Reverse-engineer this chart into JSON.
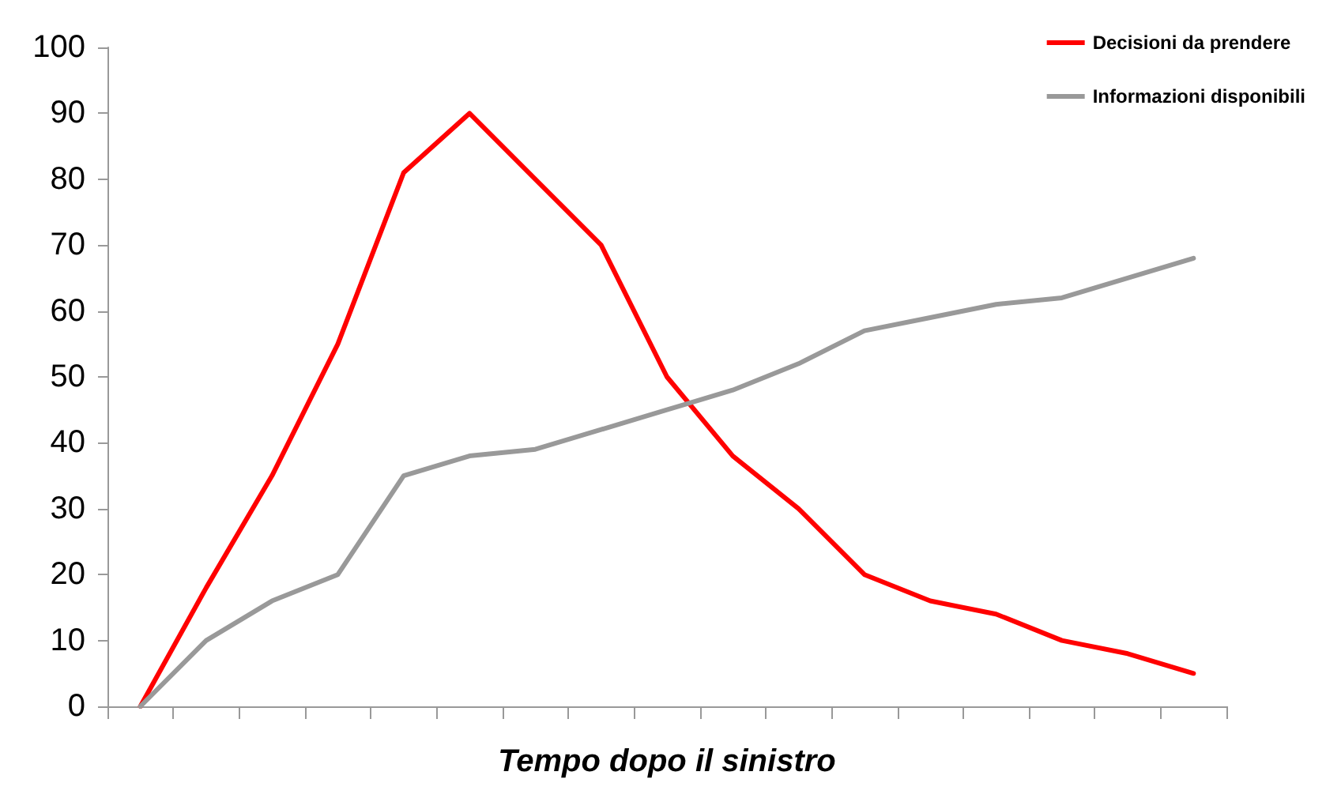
{
  "chart_data": {
    "type": "line",
    "xlabel": "Tempo dopo il sinistro",
    "categories": [
      null,
      null,
      null,
      null,
      null,
      null,
      null,
      null,
      null,
      null,
      null,
      null,
      null,
      null,
      null,
      null,
      null
    ],
    "series": [
      {
        "name": "Decisioni da prendere",
        "color": "#ff0000",
        "values": [
          0,
          18,
          35,
          55,
          81,
          90,
          80,
          70,
          50,
          38,
          30,
          20,
          16,
          14,
          10,
          8,
          5
        ]
      },
      {
        "name": "Informazioni disponibili",
        "color": "#999999",
        "values": [
          0,
          10,
          16,
          20,
          35,
          38,
          39,
          42,
          45,
          48,
          52,
          57,
          59,
          61,
          62,
          65,
          68
        ]
      }
    ],
    "ylim": [
      0,
      100
    ],
    "yticks": [
      0,
      10,
      20,
      30,
      40,
      50,
      60,
      70,
      80,
      90,
      100
    ],
    "grid": false,
    "legend": "top right",
    "marker": "none",
    "line_style": "solid"
  }
}
